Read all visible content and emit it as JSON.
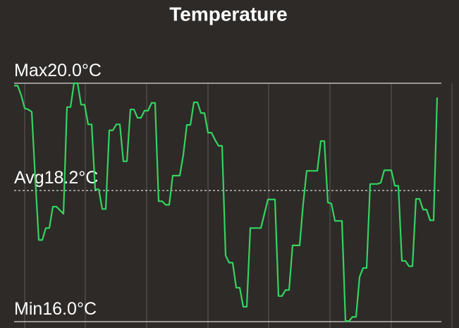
{
  "chart_data": {
    "type": "line",
    "title": "Temperature",
    "series": [
      {
        "color": "#33d45f",
        "values": [
          19.96,
          19.96,
          19.8,
          19.58,
          19.56,
          19.52,
          18.4,
          17.37,
          17.37,
          17.57,
          17.57,
          17.93,
          17.93,
          17.87,
          17.81,
          19.6,
          19.6,
          20.0,
          20.0,
          19.64,
          19.64,
          19.31,
          19.31,
          18.22,
          18.22,
          17.89,
          17.89,
          19.21,
          19.21,
          19.31,
          19.31,
          18.69,
          18.69,
          19.56,
          19.56,
          19.42,
          19.42,
          19.54,
          19.54,
          19.67,
          19.67,
          18.02,
          18.02,
          17.96,
          17.96,
          18.45,
          18.45,
          18.45,
          18.8,
          19.3,
          19.3,
          19.68,
          19.68,
          19.5,
          19.5,
          19.17,
          19.17,
          19.05,
          18.95,
          18.95,
          17.11,
          16.99,
          16.99,
          16.57,
          16.57,
          16.25,
          16.25,
          17.57,
          17.57,
          17.57,
          17.57,
          17.81,
          18.05,
          18.05,
          18.05,
          16.43,
          16.43,
          16.53,
          16.53,
          17.28,
          17.28,
          17.28,
          17.98,
          18.53,
          18.53,
          18.53,
          18.53,
          19.03,
          19.03,
          18.0,
          17.98,
          17.69,
          17.69,
          17.69,
          16.01,
          16.01,
          16.08,
          16.08,
          16.75,
          16.9,
          16.9,
          18.31,
          18.31,
          18.31,
          18.33,
          18.54,
          18.54,
          18.54,
          18.28,
          18.28,
          17.02,
          17.02,
          16.93,
          16.93,
          18.06,
          18.06,
          17.88,
          17.88,
          17.7,
          17.7,
          19.76
        ]
      }
    ],
    "ylim": [
      16,
      20
    ],
    "reference_lines": [
      {
        "value": 20.0,
        "label": "Max20.0°C",
        "style": "solid"
      },
      {
        "value": 18.2,
        "label": "Avg18.2°C",
        "style": "dashed"
      },
      {
        "value": 16.0,
        "label": "Min16.0°C",
        "style": "solid"
      }
    ]
  }
}
